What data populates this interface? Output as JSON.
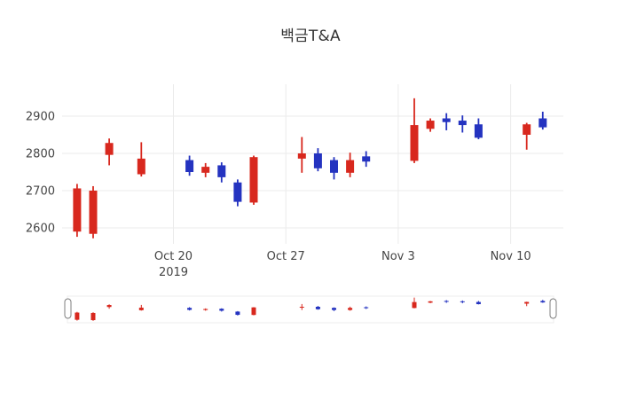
{
  "chart_data": {
    "type": "candlestick",
    "title": "백금T&A",
    "xlabel": "",
    "ylabel": "",
    "grid": true,
    "legend": "none",
    "rangeslider": true,
    "y_range": [
      2555,
      2985
    ],
    "yticks": [
      2600,
      2700,
      2800,
      2900
    ],
    "xticks": [
      {
        "date": "2019-10-20",
        "label": "Oct 20",
        "sublabel": "2019"
      },
      {
        "date": "2019-10-27",
        "label": "Oct 27",
        "sublabel": ""
      },
      {
        "date": "2019-11-03",
        "label": "Nov 3",
        "sublabel": ""
      },
      {
        "date": "2019-11-10",
        "label": "Nov 10",
        "sublabel": ""
      }
    ],
    "colors": {
      "increasing": "#d8281e",
      "decreasing": "#2433c0",
      "grid": "#ebebeb",
      "text": "#444444",
      "handle_border": "#7f7f7f",
      "slider_border": "#ececec"
    },
    "ohlc": [
      {
        "date": "2019-10-14",
        "open": 2590,
        "high": 2718,
        "low": 2576,
        "close": 2706
      },
      {
        "date": "2019-10-15",
        "open": 2584,
        "high": 2712,
        "low": 2572,
        "close": 2700
      },
      {
        "date": "2019-10-16",
        "open": 2796,
        "high": 2840,
        "low": 2768,
        "close": 2828
      },
      {
        "date": "2019-10-18",
        "open": 2744,
        "high": 2830,
        "low": 2738,
        "close": 2786
      },
      {
        "date": "2019-10-21",
        "open": 2782,
        "high": 2794,
        "low": 2740,
        "close": 2750
      },
      {
        "date": "2019-10-22",
        "open": 2748,
        "high": 2774,
        "low": 2736,
        "close": 2764
      },
      {
        "date": "2019-10-23",
        "open": 2768,
        "high": 2776,
        "low": 2722,
        "close": 2736
      },
      {
        "date": "2019-10-24",
        "open": 2722,
        "high": 2730,
        "low": 2658,
        "close": 2670
      },
      {
        "date": "2019-10-25",
        "open": 2668,
        "high": 2794,
        "low": 2662,
        "close": 2790
      },
      {
        "date": "2019-10-28",
        "open": 2786,
        "high": 2844,
        "low": 2748,
        "close": 2800
      },
      {
        "date": "2019-10-29",
        "open": 2800,
        "high": 2814,
        "low": 2752,
        "close": 2760
      },
      {
        "date": "2019-10-30",
        "open": 2782,
        "high": 2790,
        "low": 2730,
        "close": 2748
      },
      {
        "date": "2019-10-31",
        "open": 2748,
        "high": 2802,
        "low": 2736,
        "close": 2782
      },
      {
        "date": "2019-11-01",
        "open": 2792,
        "high": 2806,
        "low": 2764,
        "close": 2778
      },
      {
        "date": "2019-11-04",
        "open": 2780,
        "high": 2948,
        "low": 2774,
        "close": 2876
      },
      {
        "date": "2019-11-05",
        "open": 2866,
        "high": 2894,
        "low": 2858,
        "close": 2888
      },
      {
        "date": "2019-11-06",
        "open": 2894,
        "high": 2908,
        "low": 2862,
        "close": 2884
      },
      {
        "date": "2019-11-07",
        "open": 2888,
        "high": 2902,
        "low": 2856,
        "close": 2876
      },
      {
        "date": "2019-11-08",
        "open": 2878,
        "high": 2894,
        "low": 2838,
        "close": 2842
      },
      {
        "date": "2019-11-11",
        "open": 2850,
        "high": 2882,
        "low": 2810,
        "close": 2878
      },
      {
        "date": "2019-11-12",
        "open": 2894,
        "high": 2912,
        "low": 2864,
        "close": 2870
      }
    ]
  }
}
